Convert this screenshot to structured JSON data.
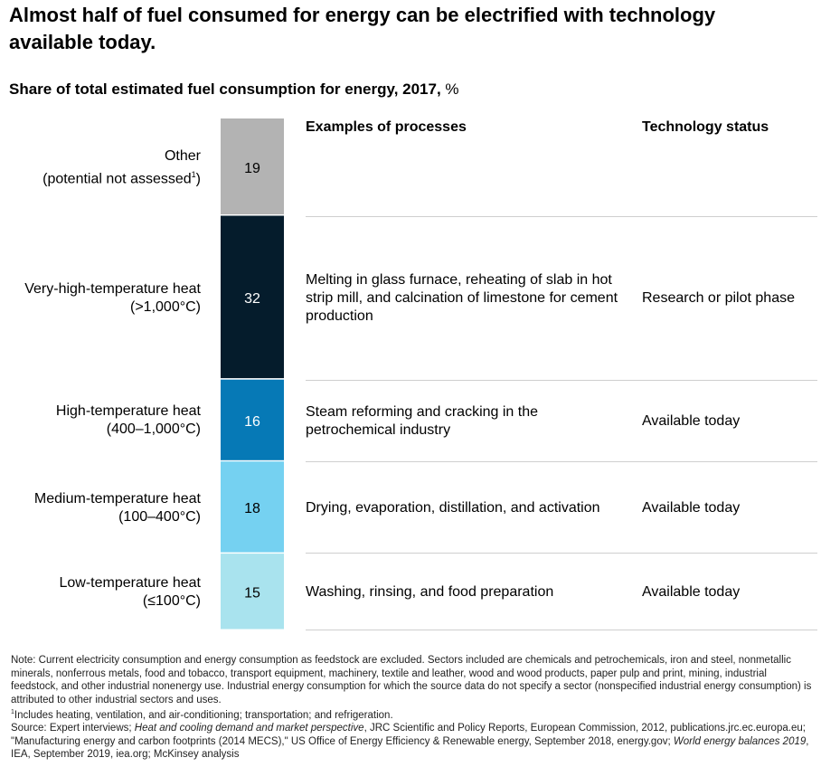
{
  "title": "Almost half of fuel consumed for energy can be electrified with technology available today.",
  "subtitle": {
    "main": "Share of total estimated fuel consumption for energy, 2017,",
    "unit": "%"
  },
  "columns": {
    "processes": "Examples of processes",
    "status": "Technology status"
  },
  "chart_data": {
    "type": "bar",
    "subtype": "stacked-single-column",
    "title": "Share of total estimated fuel consumption for energy, 2017, %",
    "categories": [
      "Other",
      "Very-high-temperature heat",
      "High-temperature heat",
      "Medium-temperature heat",
      "Low-temperature heat"
    ],
    "values": [
      19,
      32,
      16,
      18,
      15
    ],
    "colors": [
      "#B3B3B3",
      "#051C2C",
      "#0679B6",
      "#75D1F1",
      "#A9E3EE"
    ],
    "label_colors": [
      "#000000",
      "#FFFFFF",
      "#FFFFFF",
      "#000000",
      "#000000"
    ],
    "ylim": [
      0,
      100
    ]
  },
  "rows": [
    {
      "label": "Other",
      "sublabel": "(potential not assessed",
      "footnote": "1",
      "sublabel_end": ")",
      "process": "",
      "status": ""
    },
    {
      "label": "Very-high-temperature heat",
      "sublabel": "(>1,000°C)",
      "process": "Melting in glass furnace, reheating of slab in hot strip mill, and calcination of limestone for cement production",
      "status": "Research or pilot phase"
    },
    {
      "label": "High-temperature heat",
      "sublabel": "(400–1,000°C)",
      "process": "Steam reforming and cracking in the petrochemical industry",
      "status": "Available today"
    },
    {
      "label": "Medium-temperature heat",
      "sublabel": "(100–400°C)",
      "process": "Drying, evaporation, distillation, and activation",
      "status": "Available today"
    },
    {
      "label": "Low-temperature heat",
      "sublabel": "(≤100°C)",
      "process": "Washing, rinsing, and food preparation",
      "status": "Available today"
    }
  ],
  "notes": {
    "note": "Note: Current electricity consumption and energy consumption as feedstock are excluded. Sectors included are chemicals and petrochemicals, iron and steel, nonmetallic minerals, nonferrous metals, food and tobacco, transport equipment, machinery, textile and leather, wood and wood products, paper pulp and print, mining, industrial feedstock, and other industrial nonenergy use. Industrial energy consumption for which the source data do not specify a sector (nonspecified industrial energy consumption) is attributed to other industrial sectors and uses.",
    "footnote_mark": "1",
    "footnote": "Includes heating, ventilation, and air-conditioning; transportation; and refrigeration.",
    "source_prefix": "Source: Expert interviews; ",
    "source_title1": "Heat and cooling demand and market perspective",
    "source_mid": ", JRC Scientific and Policy Reports, European Commission, 2012, publications.jrc.ec.europa.eu; \"Manufacturing energy and carbon footprints (2014 MECS),\" US Office of Energy Efficiency & Renewable energy, September 2018, energy.gov; ",
    "source_title2": "World energy balances 2019",
    "source_end": ", IEA, September 2019, iea.org; McKinsey analysis"
  }
}
